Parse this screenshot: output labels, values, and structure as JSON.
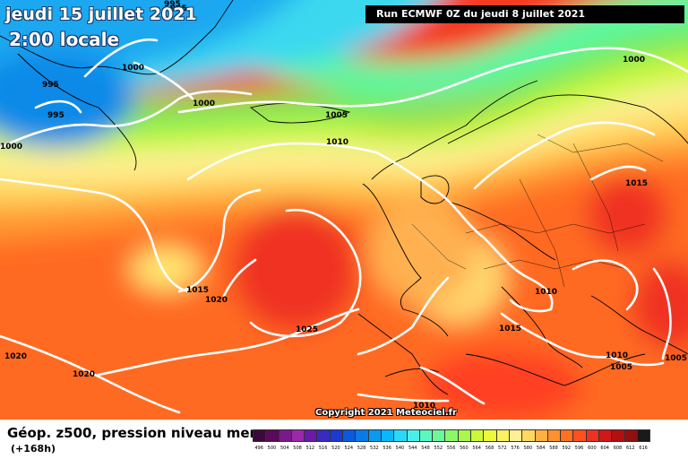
{
  "map": {
    "date_title": "jeudi 15 juillet 2021",
    "time_title": "2:00 locale",
    "run_banner": "Run ECMWF 0Z du jeudi 8 juillet 2021",
    "copyright": "Copyright 2021 Meteociel.fr",
    "footer_title": "Géop. z500, pression niveau mer",
    "footer_sub": "(+168h)",
    "isobar_labels": [
      "995",
      "995",
      "995",
      "995",
      "1000",
      "1000",
      "1000",
      "1000",
      "1005",
      "1005",
      "1010",
      "1010",
      "1010",
      "1015",
      "1015",
      "1015",
      "1020",
      "1020",
      "1020",
      "1025",
      "1005",
      "1010"
    ],
    "scale_values": [
      "496",
      "500",
      "504",
      "508",
      "512",
      "516",
      "520",
      "524",
      "528",
      "532",
      "536",
      "540",
      "544",
      "548",
      "552",
      "556",
      "560",
      "564",
      "568",
      "572",
      "576",
      "580",
      "584",
      "588",
      "592",
      "596",
      "600",
      "604",
      "608",
      "612",
      "616"
    ],
    "scale_colors": [
      "#3a0a3a",
      "#5a0a5a",
      "#7a1a8a",
      "#9a2aaa",
      "#6a1aaa",
      "#3a2ac0",
      "#1a3ad0",
      "#0a5ae0",
      "#0a7ae8",
      "#0a9af0",
      "#0ab8f8",
      "#2ad8f8",
      "#4af0e8",
      "#5af8c0",
      "#6af89a",
      "#8af86a",
      "#aaf84a",
      "#ccf83a",
      "#eef83a",
      "#fff060",
      "#fff098",
      "#ffd860",
      "#ffb040",
      "#ff9030",
      "#ff7020",
      "#ff5020",
      "#f03020",
      "#d01818",
      "#b01010",
      "#901010",
      "#1a1a1a"
    ]
  }
}
